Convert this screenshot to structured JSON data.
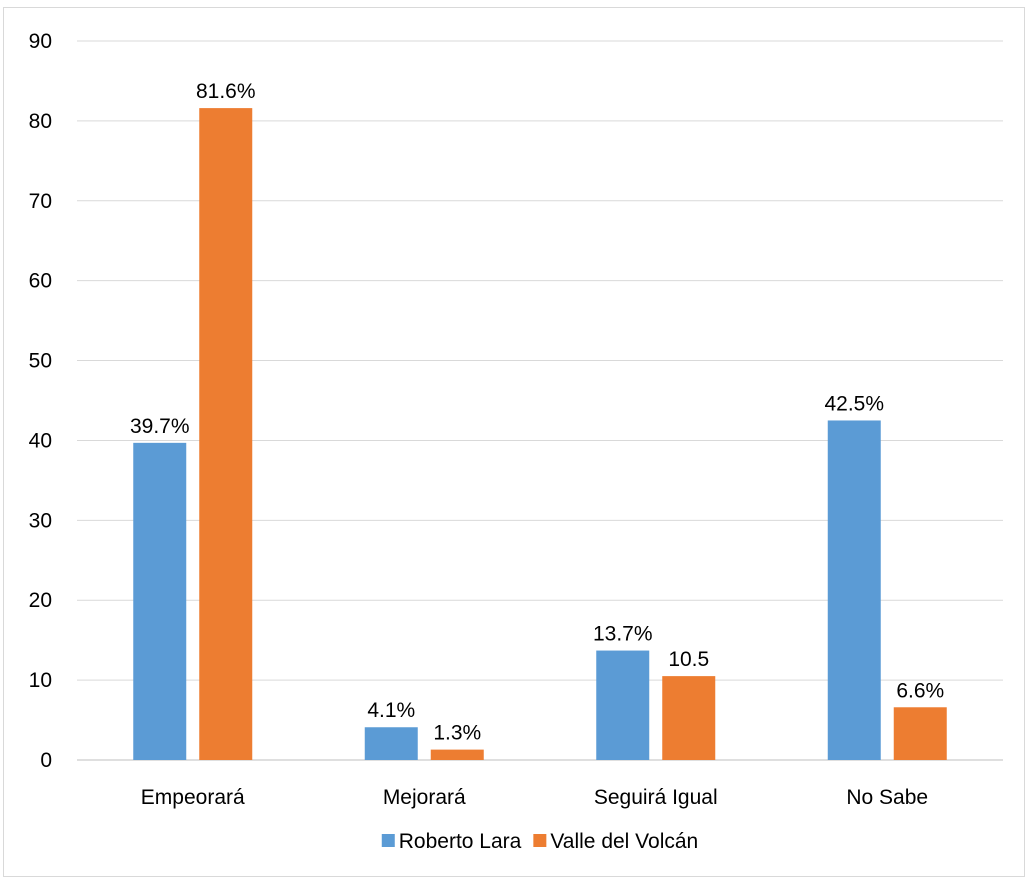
{
  "chart_data": {
    "type": "bar",
    "title": "",
    "xlabel": "",
    "ylabel": "",
    "categories": [
      "Empeorará",
      "Mejorará",
      "Seguirá Igual",
      "No Sabe"
    ],
    "series": [
      {
        "name": "Roberto Lara",
        "color": "#5b9bd5",
        "values": [
          39.7,
          4.1,
          13.7,
          42.5
        ],
        "labels": [
          "39.7%",
          "4.1%",
          "13.7%",
          "42.5%"
        ]
      },
      {
        "name": "Valle del Volcán",
        "color": "#ed7d31",
        "values": [
          81.6,
          1.3,
          10.5,
          6.6
        ],
        "labels": [
          "81.6%",
          "1.3%",
          "10.5",
          "6.6%"
        ]
      }
    ],
    "ylim": [
      0,
      90
    ],
    "yticks": [
      0,
      10,
      20,
      30,
      40,
      50,
      60,
      70,
      80,
      90
    ],
    "grid": true,
    "legend": "bottom-center"
  }
}
